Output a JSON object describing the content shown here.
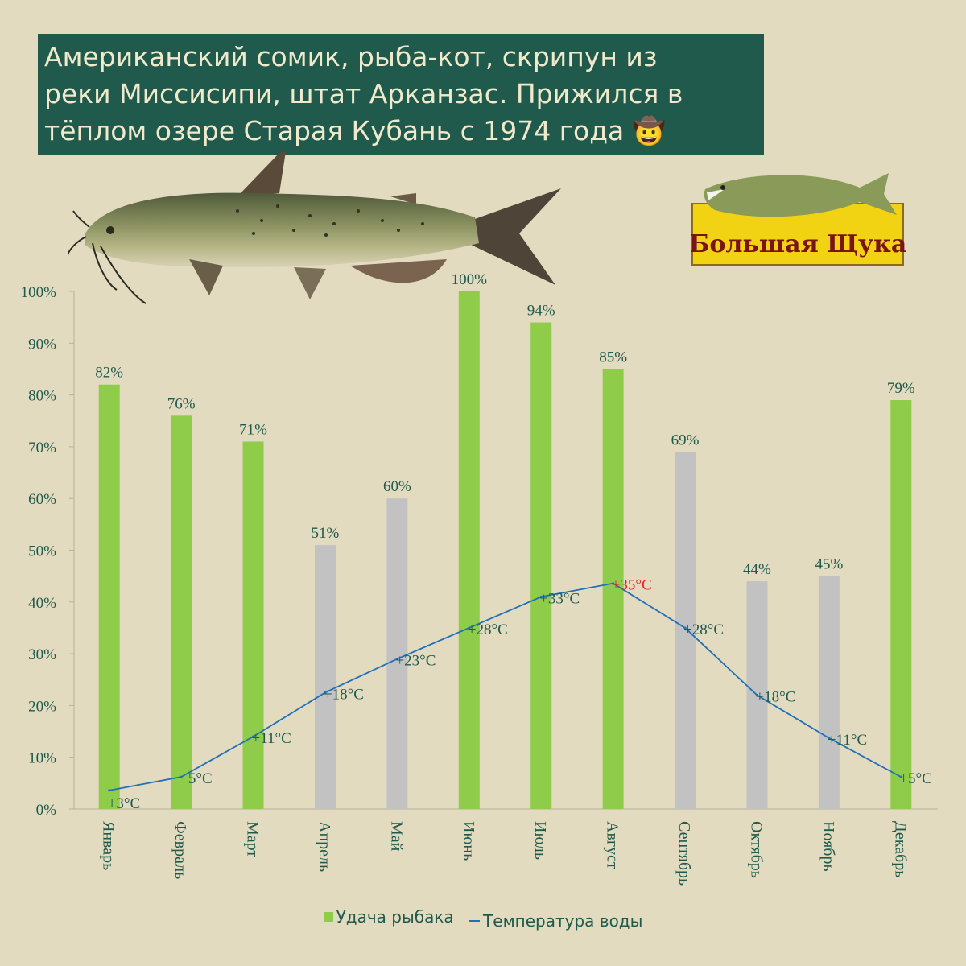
{
  "title": {
    "lines": [
      "Американский сомик, рыба-кот, скрипун из",
      "реки Миссисипи, штат Арканзас. Прижился в",
      "тёплом озере Старая Кубань с 1974 года 🤠"
    ]
  },
  "logo": {
    "text": "Большая Щука"
  },
  "colors": {
    "good": "#8fcc4a",
    "bad": "#c2c2c2",
    "line": "#1f6fba",
    "text": "#1f5a4c",
    "hot": "#e8262a"
  },
  "chart_data": {
    "type": "bar",
    "categories": [
      "Январь",
      "Февраль",
      "Март",
      "Апрель",
      "Май",
      "Июнь",
      "Июль",
      "Август",
      "Сентябрь",
      "Октябрь",
      "Ноябрь",
      "Декабрь"
    ],
    "series": [
      {
        "name": "Удача рыбака",
        "type": "bar",
        "values": [
          82,
          76,
          71,
          51,
          60,
          100,
          94,
          85,
          69,
          44,
          45,
          79
        ],
        "labels": [
          "82%",
          "76%",
          "71%",
          "51%",
          "60%",
          "100%",
          "94%",
          "85%",
          "69%",
          "44%",
          "45%",
          "79%"
        ],
        "bar_colors": [
          "good",
          "good",
          "good",
          "bad",
          "bad",
          "good",
          "good",
          "good",
          "bad",
          "bad",
          "bad",
          "good"
        ]
      },
      {
        "name": "Температура воды",
        "type": "line",
        "values": [
          3.6,
          6.2,
          14,
          22.5,
          29,
          35,
          41,
          43.6,
          35,
          22,
          13.7,
          6.2
        ],
        "labels": [
          "+3°C",
          "+5°C",
          "+11°C",
          "+18°C",
          "+23°C",
          "+28°C",
          "+33°C",
          "+35°C",
          "+28°C",
          "+18°C",
          "+11°C",
          "+5°C"
        ],
        "highlight_index": 7
      }
    ],
    "y_ticks": [
      "0%",
      "10%",
      "20%",
      "30%",
      "40%",
      "50%",
      "60%",
      "70%",
      "80%",
      "90%",
      "100%"
    ],
    "ylim": [
      0,
      100
    ],
    "legend": {
      "position": "bottom",
      "items": [
        "Удача рыбака",
        "Температура воды"
      ]
    }
  }
}
